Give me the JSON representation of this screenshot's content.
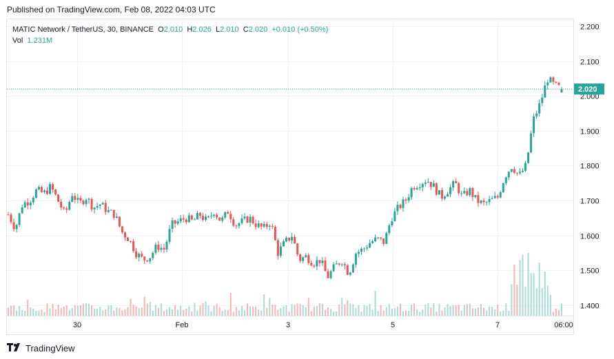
{
  "header": {
    "published": "Published on TradingView.com, Feb 08, 2022 04:03 UTC"
  },
  "legend": {
    "symbol": "MATIC Network / TetherUS, 30, BINANCE",
    "o_label": "O",
    "o_value": "2.010",
    "h_label": "H",
    "h_value": "2.026",
    "l_label": "L",
    "l_value": "2.010",
    "c_label": "C",
    "c_value": "2.020",
    "change": "+0.010 (+0.50%)",
    "vol_label": "Vol",
    "vol_value": "1.231M"
  },
  "footer": {
    "brand": "TradingView"
  },
  "colors": {
    "up": "#26a69a",
    "down": "#ef5350",
    "up_vol": "#a8dbd6",
    "down_vol": "#f5b5b3",
    "grid": "#f0f3fa",
    "last_price": "#26a69a"
  },
  "chart_data": {
    "type": "candlestick",
    "symbol": "MATIC Network / TetherUS",
    "interval": "30",
    "exchange": "BINANCE",
    "ylim": [
      1.37,
      2.22
    ],
    "y_ticks": [
      "2.200",
      "2.100",
      "2.000",
      "1.900",
      "1.800",
      "1.700",
      "1.600",
      "1.500",
      "1.400"
    ],
    "x_ticks": [
      "30",
      "Feb",
      "3",
      "5",
      "7",
      "06:00"
    ],
    "last_price": "2.020",
    "grid": true,
    "close_path": [
      1.66,
      1.62,
      1.69,
      1.7,
      1.73,
      1.72,
      1.74,
      1.7,
      1.66,
      1.72,
      1.69,
      1.71,
      1.68,
      1.69,
      1.67,
      1.66,
      1.61,
      1.59,
      1.55,
      1.53,
      1.54,
      1.57,
      1.56,
      1.63,
      1.64,
      1.65,
      1.64,
      1.66,
      1.64,
      1.67,
      1.64,
      1.67,
      1.63,
      1.64,
      1.65,
      1.63,
      1.62,
      1.64,
      1.55,
      1.58,
      1.6,
      1.53,
      1.54,
      1.52,
      1.53,
      1.48,
      1.51,
      1.53,
      1.49,
      1.55,
      1.56,
      1.58,
      1.59,
      1.58,
      1.65,
      1.68,
      1.7,
      1.74,
      1.75,
      1.76,
      1.74,
      1.71,
      1.73,
      1.75,
      1.71,
      1.73,
      1.7,
      1.69,
      1.7,
      1.71,
      1.77,
      1.8,
      1.77,
      1.8,
      1.93,
      1.98,
      2.05,
      2.03,
      2.02
    ],
    "volume": {
      "typical": 0.28,
      "max": 1.0
    }
  }
}
